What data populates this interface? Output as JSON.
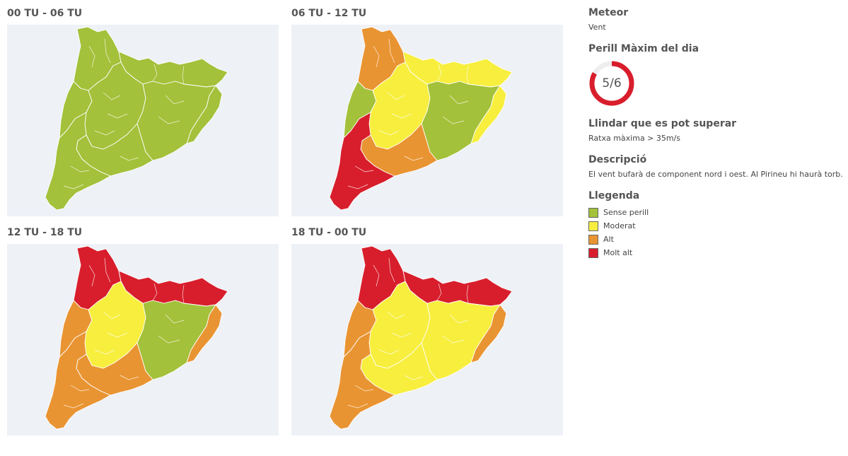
{
  "colors": {
    "sense_perill": "#a3c13a",
    "moderat": "#f7ee3e",
    "alt": "#e99432",
    "molt_alt": "#d81e2c",
    "map_background": "#eef1f6",
    "gauge_track": "#eeeeee",
    "gauge_fill": "#d81e2c"
  },
  "periods": [
    {
      "label": "00 TU - 06 TU",
      "zones": {
        "north": "sense_perill",
        "northeast": "sense_perill",
        "coast_east": "sense_perill",
        "west": "sense_perill",
        "center": "sense_perill",
        "central_east": "sense_perill",
        "south_center": "sense_perill",
        "south": "sense_perill"
      }
    },
    {
      "label": "06 TU - 12 TU",
      "zones": {
        "north": "alt",
        "northeast": "moderat",
        "coast_east": "moderat",
        "west": "sense_perill",
        "center": "moderat",
        "central_east": "sense_perill",
        "south_center": "alt",
        "south": "molt_alt"
      }
    },
    {
      "label": "12 TU - 18 TU",
      "zones": {
        "north": "molt_alt",
        "northeast": "molt_alt",
        "coast_east": "alt",
        "west": "alt",
        "center": "moderat",
        "central_east": "sense_perill",
        "south_center": "alt",
        "south": "alt"
      }
    },
    {
      "label": "18 TU - 00 TU",
      "zones": {
        "north": "molt_alt",
        "northeast": "molt_alt",
        "coast_east": "alt",
        "west": "alt",
        "center": "moderat",
        "central_east": "moderat",
        "south_center": "moderat",
        "south": "alt"
      }
    }
  ],
  "info": {
    "meteor_heading": "Meteor",
    "meteor_value": "Vent",
    "danger_heading": "Perill Màxim del dia",
    "danger_value": 5,
    "danger_max": 6,
    "danger_label": "5/6",
    "threshold_heading": "Llindar que es pot superar",
    "threshold_value": "Ratxa màxima > 35m/s",
    "description_heading": "Descripció",
    "description_value": "El vent bufarà de component nord i oest. Al Pirineu hi haurà torb."
  },
  "legend": {
    "heading": "Llegenda",
    "items": [
      {
        "label": "Sense perill",
        "level": "sense_perill"
      },
      {
        "label": "Moderat",
        "level": "moderat"
      },
      {
        "label": "Alt",
        "level": "alt"
      },
      {
        "label": "Molt alt",
        "level": "molt_alt"
      }
    ]
  }
}
